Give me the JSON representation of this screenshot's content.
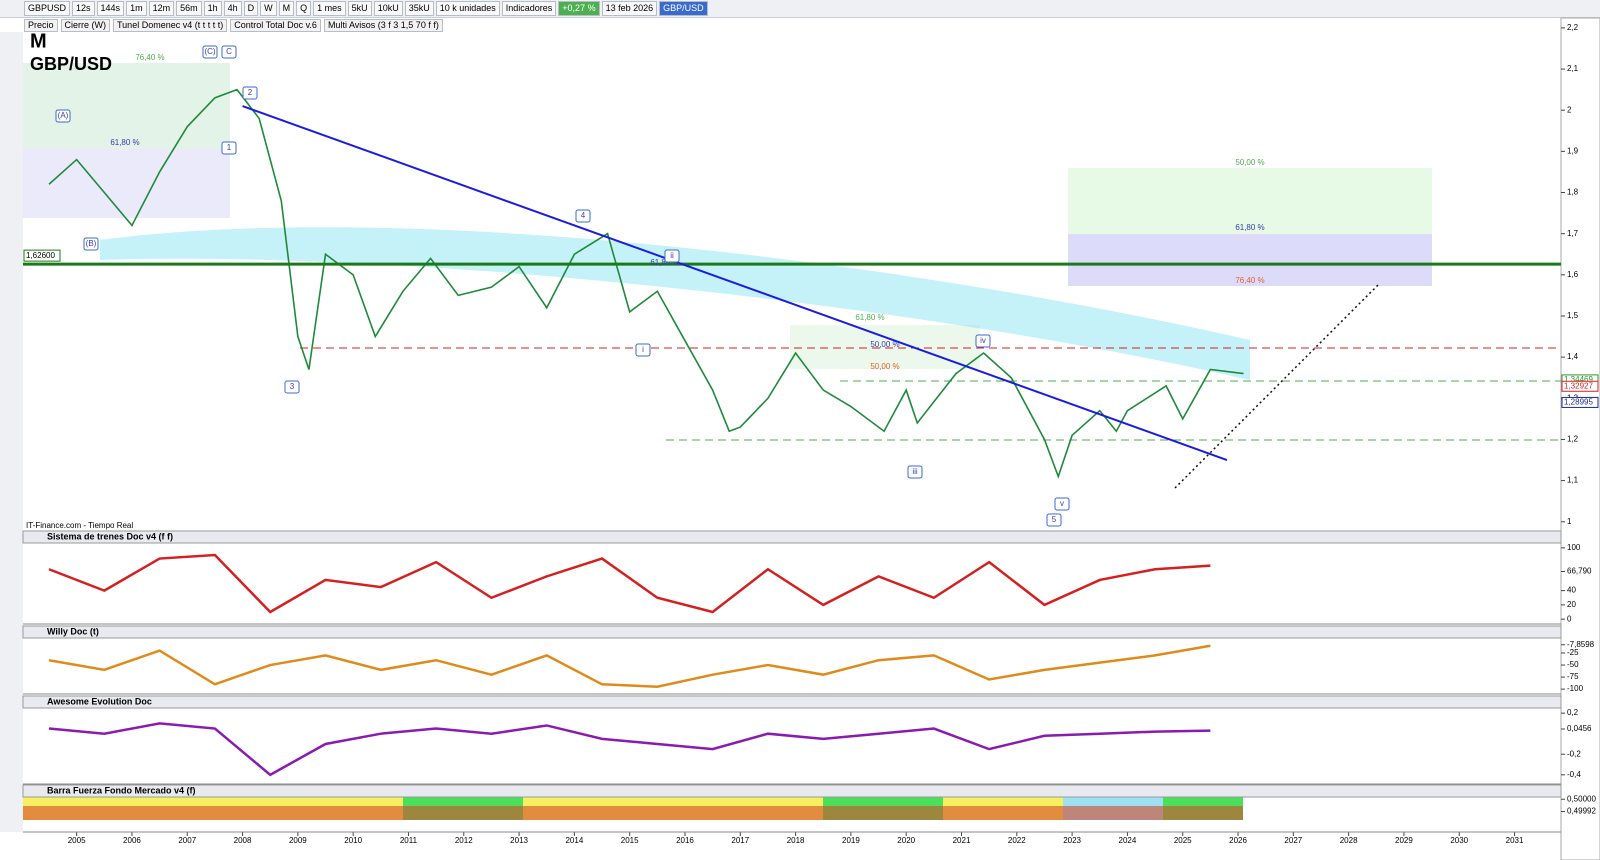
{
  "toolbar": {
    "symbol": "GBPUSD",
    "intervals": [
      "12s",
      "144s",
      "1m",
      "12m",
      "56m",
      "1h",
      "4h",
      "D",
      "W",
      "M",
      "Q"
    ],
    "period": "1 mes",
    "units": [
      "5kU",
      "10kU",
      "35kU"
    ],
    "units_select": "10 k unidades",
    "indicators": "Indicadores",
    "change": "+0,27 %",
    "date": "13 feb 2026",
    "instrument": "GBP/USD"
  },
  "legend_bar": [
    "Precio",
    "Cierre (W)",
    "Tunel Domenec v4 (t t t t t)",
    "Control Total Doc v.6",
    "Multi Avisos (3 f 3 1,5 70 f f)"
  ],
  "chart_data": [
    {
      "type": "line",
      "subtitle": "M",
      "title": "GBP/USD",
      "source": "IT-Finance.com - Tiempo Real",
      "color": "#1f8a3a",
      "x": [
        2004.5,
        2005.0,
        2005.5,
        2006.0,
        2006.5,
        2007.0,
        2007.5,
        2007.9,
        2008.3,
        2008.7,
        2009.0,
        2009.2,
        2009.5,
        2010.0,
        2010.4,
        2010.9,
        2011.4,
        2011.9,
        2012.5,
        2013.0,
        2013.5,
        2014.0,
        2014.6,
        2015.0,
        2015.5,
        2016.0,
        2016.5,
        2016.8,
        2017.0,
        2017.5,
        2018.0,
        2018.5,
        2019.0,
        2019.6,
        2020.0,
        2020.2,
        2020.9,
        2021.4,
        2021.9,
        2022.5,
        2022.75,
        2023.0,
        2023.5,
        2023.8,
        2024.0,
        2024.7,
        2025.0,
        2025.5,
        2026.1
      ],
      "values": [
        1.82,
        1.88,
        1.8,
        1.72,
        1.85,
        1.96,
        2.03,
        2.05,
        1.98,
        1.78,
        1.45,
        1.37,
        1.65,
        1.6,
        1.45,
        1.56,
        1.64,
        1.55,
        1.57,
        1.62,
        1.52,
        1.65,
        1.7,
        1.51,
        1.56,
        1.44,
        1.32,
        1.22,
        1.23,
        1.3,
        1.41,
        1.32,
        1.28,
        1.22,
        1.32,
        1.24,
        1.36,
        1.41,
        1.35,
        1.2,
        1.11,
        1.21,
        1.27,
        1.22,
        1.27,
        1.33,
        1.25,
        1.37,
        1.36
      ],
      "xlim": [
        2004.03,
        2031.84
      ],
      "xticks": [
        2005,
        2006,
        2007,
        2008,
        2009,
        2010,
        2011,
        2012,
        2013,
        2014,
        2015,
        2016,
        2017,
        2018,
        2019,
        2020,
        2021,
        2022,
        2023,
        2024,
        2025,
        2026,
        2027,
        2028,
        2029,
        2030,
        2031
      ],
      "ylim": [
        0.98,
        2.19
      ],
      "yticks": [
        1,
        {
          "value": 1.1,
          "label": "1,1"
        },
        {
          "value": 1.2,
          "label": "1,2"
        },
        {
          "value": 1.3,
          "label": "1,3"
        },
        {
          "value": 1.4,
          "label": "1,4"
        },
        {
          "value": 1.5,
          "label": "1,5"
        },
        {
          "value": 1.6,
          "label": "1,6"
        },
        {
          "value": 1.7,
          "label": "1,7"
        },
        {
          "value": 1.8,
          "label": "1,8"
        },
        {
          "value": 1.9,
          "label": "1,9"
        },
        2,
        {
          "value": 2.1,
          "label": "2,1"
        },
        {
          "value": 2.2,
          "label": "2,2"
        }
      ],
      "hline": {
        "value": 1.626,
        "label": "1,62600",
        "color": "#1a7a1a"
      },
      "price_labels": [
        {
          "value": 1.34469,
          "label": "1,34469",
          "color": "#2a9a2a"
        },
        {
          "value": 1.32927,
          "label": "1,32927",
          "color": "#d42020"
        },
        {
          "value": 1.28995,
          "label": "1,28995",
          "color": "#1c2aa0"
        }
      ],
      "trendline": {
        "x": [
          2008.0,
          2025.8
        ],
        "values": [
          2.01,
          1.15
        ],
        "color": "#1c1ce0"
      },
      "fib_labels": [
        "76,40 %",
        "61,80 %",
        "50,00 %",
        "61,80 %",
        "76,40 %",
        "61,80 %",
        "50,00 %",
        "61,80 %",
        "50,00 %"
      ],
      "wave_labels": [
        "(A)",
        "(B)",
        "(C)",
        "C",
        "1",
        "2",
        "3",
        "4",
        "i",
        "ii",
        "iii",
        "iv",
        "v",
        "5"
      ]
    },
    {
      "type": "line",
      "title": "Sistema de trenes Doc v4 (f f)",
      "color": "#d42020",
      "x": [
        2004.5,
        2005.5,
        2006.5,
        2007.5,
        2008.5,
        2009.5,
        2010.5,
        2011.5,
        2012.5,
        2013.5,
        2014.5,
        2015.5,
        2016.5,
        2017.5,
        2018.5,
        2019.5,
        2020.5,
        2021.5,
        2022.5,
        2023.5,
        2024.5,
        2025.5
      ],
      "values": [
        70,
        40,
        85,
        90,
        10,
        55,
        45,
        80,
        30,
        60,
        85,
        30,
        10,
        70,
        20,
        60,
        30,
        80,
        20,
        55,
        70,
        75
      ],
      "ylim": [
        -4,
        104
      ],
      "yticks": [
        0,
        20,
        40,
        {
          "value": 66.79,
          "label": "66,790"
        },
        100
      ]
    },
    {
      "type": "line",
      "title": "Willy Doc (t)",
      "color": "#e08a1a",
      "x": [
        2004.5,
        2005.5,
        2006.5,
        2007.5,
        2008.5,
        2009.5,
        2010.5,
        2011.5,
        2012.5,
        2013.5,
        2014.5,
        2015.5,
        2016.5,
        2017.5,
        2018.5,
        2019.5,
        2020.5,
        2021.5,
        2022.5,
        2023.5,
        2024.5,
        2025.5
      ],
      "values": [
        -40,
        -60,
        -20,
        -90,
        -50,
        -30,
        -60,
        -40,
        -70,
        -30,
        -90,
        -95,
        -70,
        -50,
        -70,
        -40,
        -30,
        -80,
        -60,
        -45,
        -30,
        -10
      ],
      "ylim": [
        -106,
        2
      ],
      "yticks": [
        -100,
        -75,
        -50,
        -25,
        {
          "value": -7.8598,
          "label": "-7,8598"
        }
      ]
    },
    {
      "type": "line",
      "title": "Awesome Evolution Doc",
      "color": "#8a1ab0",
      "x": [
        2004.5,
        2005.5,
        2006.5,
        2007.5,
        2008.5,
        2009.5,
        2010.5,
        2011.5,
        2012.5,
        2013.5,
        2014.5,
        2015.5,
        2016.5,
        2017.5,
        2018.5,
        2019.5,
        2020.5,
        2021.5,
        2022.5,
        2023.5,
        2024.5,
        2025.5
      ],
      "values": [
        0.05,
        0.0,
        0.1,
        0.05,
        -0.4,
        -0.1,
        0.0,
        0.05,
        0.0,
        0.08,
        -0.05,
        -0.1,
        -0.15,
        0.0,
        -0.05,
        0.0,
        0.05,
        -0.15,
        -0.02,
        0.0,
        0.02,
        0.03
      ],
      "ylim": [
        -0.47,
        0.25
      ],
      "yticks": [
        {
          "value": -0.4,
          "label": "-0,4"
        },
        {
          "value": -0.2,
          "label": "-0,2"
        },
        {
          "value": 0.0456,
          "label": "0,0456"
        },
        {
          "value": 0.2,
          "label": "0,2"
        }
      ]
    },
    {
      "type": "band",
      "title": "Barra Fuerza Fondo Mercado v4 (f)",
      "ylim": [
        0.4998,
        0.50006
      ],
      "yticks": [
        {
          "value": 0.49992,
          "label": "0,49992"
        },
        {
          "value": 0.5,
          "label": "0,50000"
        }
      ]
    }
  ]
}
